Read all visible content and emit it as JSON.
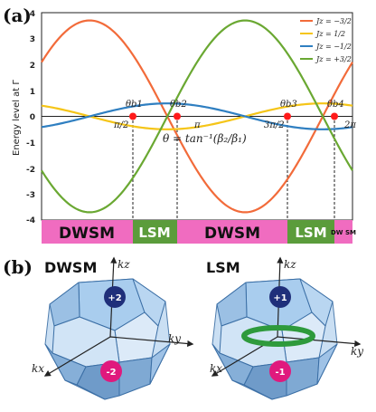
{
  "panel_a": {
    "label": "(a)",
    "ylabel": "Energy level at Γ",
    "y_ticks": [
      "4",
      "3",
      "2",
      "1",
      "0",
      "-1",
      "-2",
      "-3",
      "-4"
    ],
    "x_tick_labels": [
      "π/2",
      "π",
      "3π/2",
      "2π"
    ],
    "theta_labels": [
      "θb1",
      "θb2",
      "θb3",
      "θb4"
    ],
    "formula": "θ = tan⁻¹(β₂/β₁)",
    "legend": [
      {
        "label": "Jz = −3/2",
        "color": "#f26b3a"
      },
      {
        "label": "Jz =   1/2",
        "color": "#f5c518"
      },
      {
        "label": "Jz = −1/2",
        "color": "#2f7fc1"
      },
      {
        "label": "Jz = +3/2",
        "color": "#6aa832"
      }
    ],
    "phase_bar": [
      {
        "label": "DWSM",
        "color": "#f06cc0"
      },
      {
        "label": "LSM",
        "color": "#5b9c3b"
      },
      {
        "label": "DWSM",
        "color": "#f06cc0"
      },
      {
        "label": "LSM",
        "color": "#5b9c3b"
      },
      {
        "label": "DW SM",
        "color": "#f06cc0"
      }
    ]
  },
  "panel_b": {
    "label": "(b)",
    "left_title": "DWSM",
    "right_title": "LSM",
    "axis_labels": {
      "kz": "kz",
      "ky": "ky",
      "kx": "kx"
    },
    "left_charges": [
      "+2",
      "-2"
    ],
    "right_charges": [
      "+1",
      "-1"
    ],
    "colors": {
      "positive": "#1f2f7a",
      "negative": "#e0197d",
      "ring": "#2e9a3c",
      "solid": "#9cc3e8"
    }
  },
  "chart_data": {
    "type": "line",
    "title": "",
    "xlabel": "",
    "ylabel": "Energy level at Γ",
    "xlim": [
      0,
      6.2832
    ],
    "ylim": [
      -4,
      4
    ],
    "series": [
      {
        "name": "Jz = −3/2",
        "color": "#f26b3a",
        "formula": "3.7*sin(x)",
        "x": [
          0,
          0.785,
          1.571,
          2.356,
          3.142,
          3.927,
          4.712,
          5.498,
          6.283
        ],
        "values": [
          0,
          2.6,
          3.7,
          2.6,
          0,
          -2.6,
          -3.7,
          -2.6,
          0
        ]
      },
      {
        "name": "Jz = 1/2",
        "color": "#f5c518",
        "formula": "0.5*cos(x)",
        "x": [
          0,
          0.785,
          1.571,
          2.356,
          3.142,
          3.927,
          4.712,
          5.498,
          6.283
        ],
        "values": [
          0.5,
          0.35,
          0,
          -0.35,
          -0.5,
          -0.35,
          0,
          0.35,
          0.5
        ]
      },
      {
        "name": "Jz = −1/2",
        "color": "#2f7fc1",
        "formula": "-0.5*cos(x)",
        "x": [
          0,
          0.785,
          1.571,
          2.356,
          3.142,
          3.927,
          4.712,
          5.498,
          6.283
        ],
        "values": [
          -0.5,
          -0.35,
          0,
          0.35,
          0.5,
          0.35,
          0,
          -0.35,
          -0.5
        ]
      },
      {
        "name": "Jz = +3/2",
        "color": "#6aa832",
        "formula": "-3.7*sin(x)",
        "x": [
          0,
          0.785,
          1.571,
          2.356,
          3.142,
          3.927,
          4.712,
          5.498,
          6.283
        ],
        "values": [
          0,
          -2.6,
          -3.7,
          -2.6,
          0,
          2.6,
          3.7,
          2.6,
          0
        ]
      }
    ],
    "crossing_points": [
      {
        "name": "θb1",
        "x": 1.571,
        "y": 0
      },
      {
        "name": "θb2",
        "x": 3.142,
        "y": 0
      },
      {
        "name": "θb3",
        "x": 4.712,
        "y": 0
      },
      {
        "name": "θb4",
        "x": 6.283,
        "y": 0
      }
    ]
  }
}
